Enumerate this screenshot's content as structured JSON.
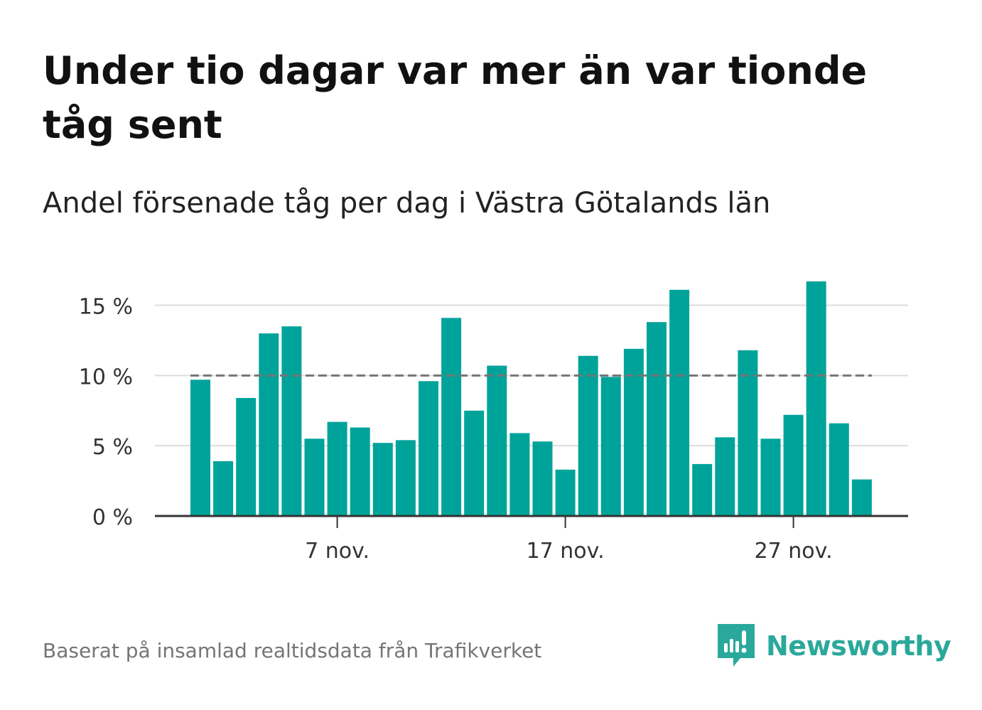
{
  "header": {
    "title": "Under tio dagar var mer än var tionde tåg sent",
    "subtitle": "Andel försenade tåg per dag i Västra Götalands län"
  },
  "footer": {
    "source": "Baserat på insamlad realtidsdata från Trafikverket",
    "brand": "Newsworthy"
  },
  "colors": {
    "bar": "#00a39a",
    "reference_line": "#757575",
    "grid": "#dddddd",
    "axis": "#333333",
    "brand": "#2aa89b"
  },
  "chart_data": {
    "type": "bar",
    "x": [
      "1 nov.",
      "2 nov.",
      "3 nov.",
      "4 nov.",
      "5 nov.",
      "6 nov.",
      "7 nov.",
      "8 nov.",
      "9 nov.",
      "10 nov.",
      "11 nov.",
      "12 nov.",
      "13 nov.",
      "14 nov.",
      "15 nov.",
      "16 nov.",
      "17 nov.",
      "18 nov.",
      "19 nov.",
      "20 nov.",
      "21 nov.",
      "22 nov.",
      "23 nov.",
      "24 nov.",
      "25 nov.",
      "26 nov.",
      "27 nov.",
      "28 nov.",
      "29 nov.",
      "30 nov."
    ],
    "values": [
      9.7,
      3.9,
      8.4,
      13.0,
      13.5,
      5.5,
      6.7,
      6.3,
      5.2,
      5.4,
      9.6,
      14.1,
      7.5,
      10.7,
      5.9,
      5.3,
      3.3,
      11.4,
      9.9,
      11.9,
      13.8,
      16.1,
      3.7,
      5.6,
      11.8,
      5.5,
      7.2,
      16.7,
      6.6,
      2.6
    ],
    "xticks": [
      "7 nov.",
      "17 nov.",
      "27 nov."
    ],
    "yticks": [
      "0 %",
      "5 %",
      "10 %",
      "15 %"
    ],
    "ytick_values": [
      0,
      5,
      10,
      15
    ],
    "ylim": [
      0,
      17
    ],
    "reference_line": 10,
    "xlabel": "",
    "ylabel": "",
    "grid": true
  }
}
